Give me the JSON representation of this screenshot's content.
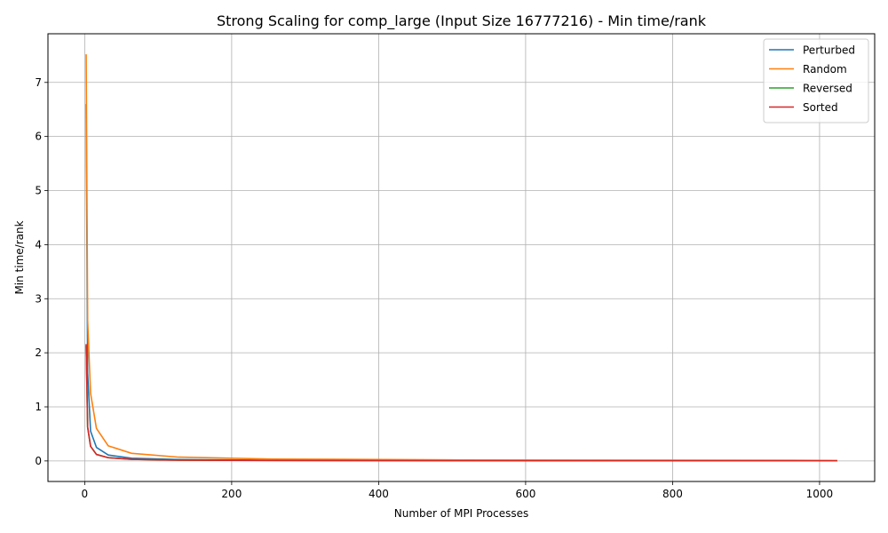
{
  "chart_data": {
    "type": "line",
    "title": "Strong Scaling for comp_large (Input Size 16777216) - Min time/rank",
    "xlabel": "Number of MPI Processes",
    "ylabel": "Min time/rank",
    "xlim": [
      -50,
      1075
    ],
    "ylim": [
      -0.38,
      7.9
    ],
    "xticks": [
      0,
      200,
      400,
      600,
      800,
      1000
    ],
    "yticks": [
      0,
      1,
      2,
      3,
      4,
      5,
      6,
      7
    ],
    "grid": true,
    "legend_position": "top-right",
    "x": [
      2,
      4,
      8,
      16,
      32,
      64,
      128,
      256,
      512,
      1024
    ],
    "series": [
      {
        "name": "Perturbed",
        "color": "#1f77b4",
        "values": [
          6.6,
          1.63,
          0.55,
          0.25,
          0.11,
          0.05,
          0.025,
          0.013,
          0.006,
          0.003
        ]
      },
      {
        "name": "Random",
        "color": "#ff7f0e",
        "values": [
          7.52,
          2.6,
          1.25,
          0.6,
          0.28,
          0.14,
          0.07,
          0.035,
          0.018,
          0.01
        ]
      },
      {
        "name": "Reversed",
        "color": "#2ca02c",
        "values": [
          2.13,
          0.62,
          0.27,
          0.12,
          0.06,
          0.03,
          0.015,
          0.008,
          0.004,
          0.002
        ]
      },
      {
        "name": "Sorted",
        "color": "#d62728",
        "values": [
          2.16,
          0.63,
          0.27,
          0.12,
          0.06,
          0.03,
          0.015,
          0.008,
          0.004,
          0.002
        ]
      }
    ]
  }
}
